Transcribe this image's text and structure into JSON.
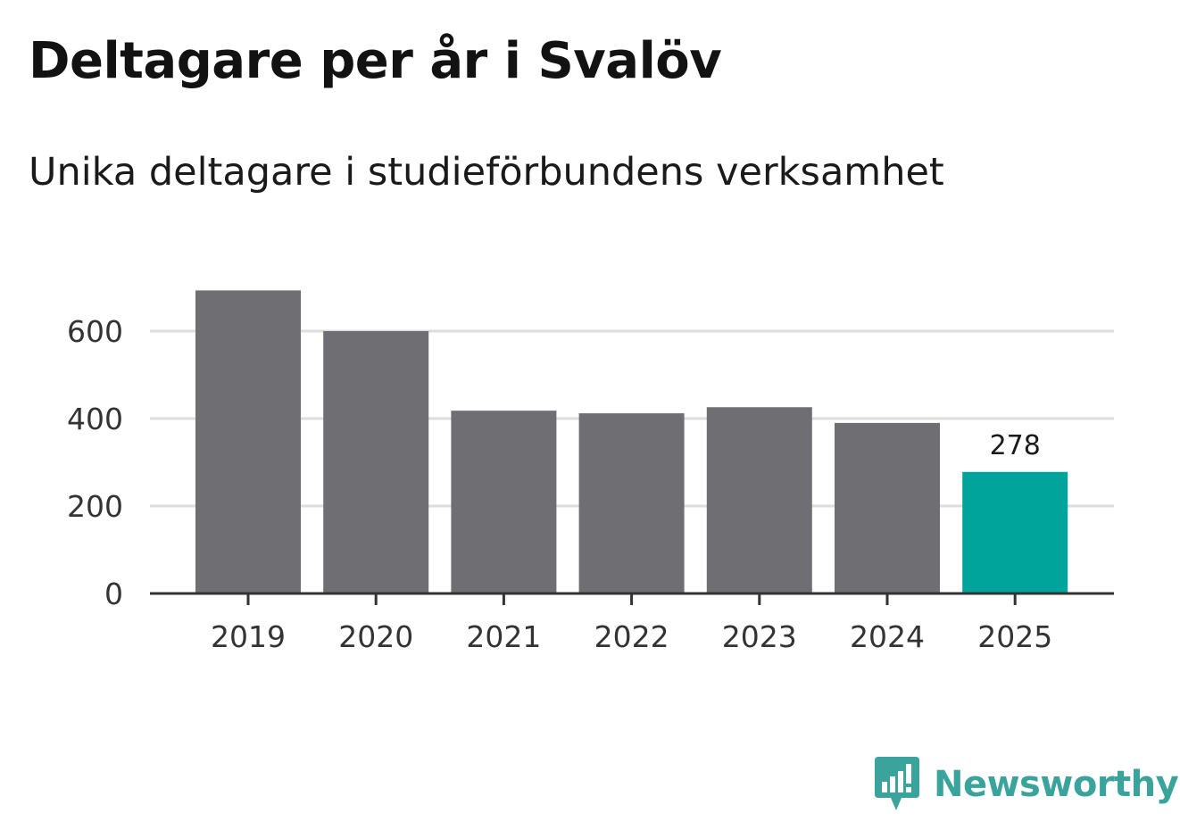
{
  "title": "Deltagare per år i Svalöv",
  "subtitle": "Unika deltagare i studieförbundens verksamhet",
  "brand": {
    "name": "Newsworthy",
    "icon": "newsworthy-logo-icon"
  },
  "colors": {
    "bar_default": "#6f6e73",
    "bar_highlight": "#00a49a",
    "gridline": "#dddddd",
    "axis": "#333333",
    "brand": "#3aa39b"
  },
  "chart_data": {
    "type": "bar",
    "categories": [
      "2019",
      "2020",
      "2021",
      "2022",
      "2023",
      "2024",
      "2025"
    ],
    "values": [
      693,
      600,
      418,
      412,
      426,
      390,
      278
    ],
    "highlight_index": 6,
    "data_labels": [
      {
        "index": 6,
        "text": "278"
      }
    ],
    "title": "Deltagare per år i Svalöv",
    "subtitle": "Unika deltagare i studieförbundens verksamhet",
    "xlabel": "",
    "ylabel": "",
    "ylim": [
      0,
      700
    ],
    "yticks": [
      0,
      200,
      400,
      600
    ],
    "ytick_labels": [
      "0",
      "200",
      "400",
      "600"
    ],
    "grid": true
  }
}
